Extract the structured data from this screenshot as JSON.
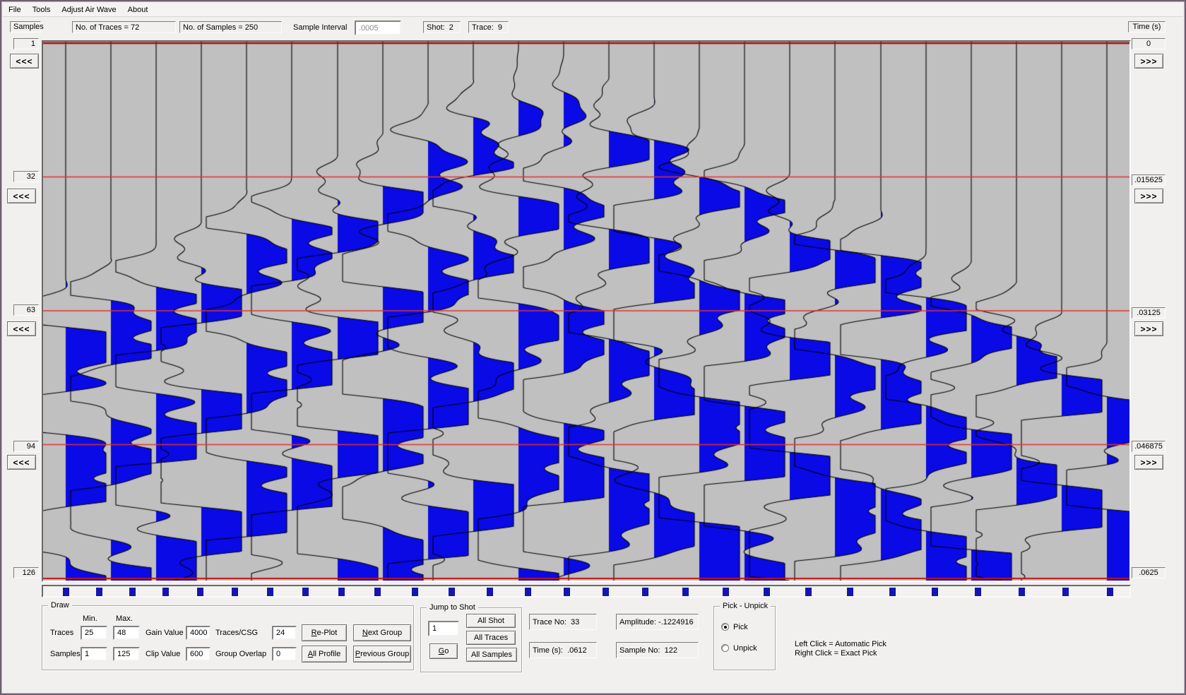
{
  "menu": {
    "items": [
      {
        "label": "File"
      },
      {
        "label": "Tools"
      },
      {
        "label": "Adjust Air Wave"
      },
      {
        "label": "About"
      }
    ]
  },
  "header": {
    "samples_label": "Samples",
    "num_traces": "No. of Traces = 72",
    "num_samples": "No. of Samples = 250",
    "sample_interval_label": "Sample Interval",
    "sample_interval_value": ".0005",
    "shot": "Shot:  2",
    "trace": "Trace:  9",
    "time_label": "Time (s)"
  },
  "left_axis": {
    "labels": [
      "1",
      "32",
      "63",
      "94",
      "126"
    ],
    "button": "<<<"
  },
  "right_axis": {
    "labels": [
      "0",
      ".015625",
      ".03125",
      ".046875",
      ".0625"
    ],
    "button": ">>>"
  },
  "draw_panel": {
    "title": "Draw",
    "min_label": "Min.",
    "max_label": "Max.",
    "traces_label": "Traces",
    "traces_min": "25",
    "traces_max": "48",
    "samples_label": "Samples",
    "samples_min": "1",
    "samples_max": "125",
    "gain_label": "Gain Value",
    "gain_value": "4000",
    "clip_label": "Clip Value",
    "clip_value": "600",
    "traces_csg_label": "Traces/CSG",
    "traces_csg_value": "24",
    "group_overlap_label": "Group Overlap",
    "group_overlap_value": "0",
    "replot": "Re-Plot",
    "all_profile": "All Profile",
    "next_group": "Next Group",
    "previous_group": "Previous Group"
  },
  "jump_panel": {
    "title": "Jump to Shot",
    "shot_value": "1",
    "go": "Go",
    "all_shot": "All Shot",
    "all_traces": "All Traces",
    "all_samples": "All Samples"
  },
  "status": {
    "trace_no": "Trace No:  33",
    "amplitude": "Amplitude: -.1224916",
    "time": "Time (s):  .0612",
    "sample_no": "Sample No:  122"
  },
  "pick_panel": {
    "title": "Pick - Unpick",
    "pick": "Pick",
    "unpick": "Unpick",
    "pick_selected": true
  },
  "hints": {
    "line1": "Left Click = Automatic Pick",
    "line2": "Right Click = Exact Pick"
  },
  "seismic": {
    "type": "wiggle-trace seismic shot gather",
    "traces_displayed": 24,
    "trace_range": [
      25,
      48
    ],
    "sample_range": [
      1,
      125
    ],
    "time_range_s": [
      0,
      0.0625
    ],
    "shot_apex_trace_index": 10.6,
    "background": "#c0c0c0",
    "trace_line_color": "#000000",
    "fill_color": "#0a0ae6",
    "grid_line_color": "#e23333",
    "edge_line_color": "#9b1010",
    "marker_color": "#1515b0",
    "marker_count": 28
  }
}
